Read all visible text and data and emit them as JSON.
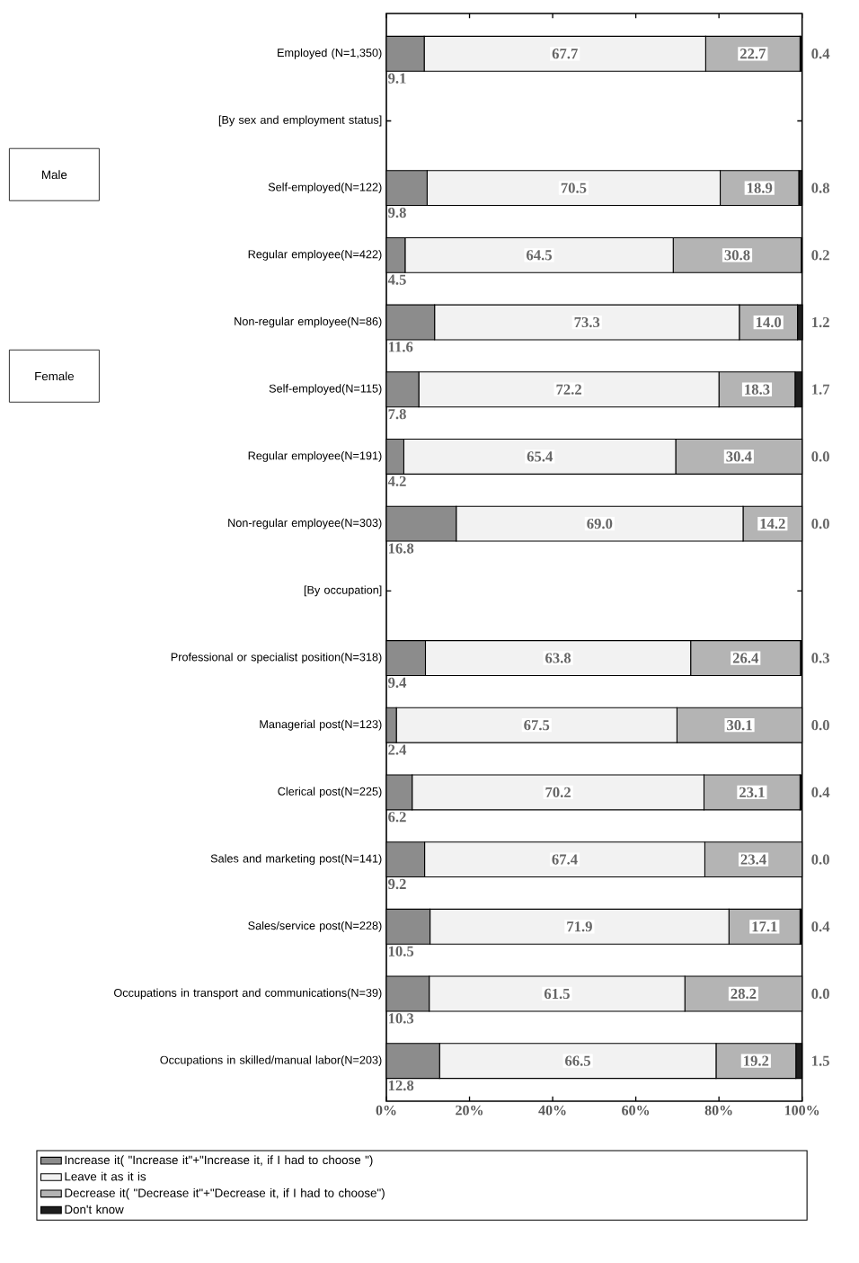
{
  "chart_data": {
    "type": "bar",
    "orientation": "horizontal",
    "stacked": true,
    "categories": [
      "Employed (N=1,350)",
      "[By sex and employment status]",
      "Self-employed(N=122)",
      "Regular employee(N=422)",
      "Non-regular employee(N=86)",
      "Self-employed(N=115)",
      "Regular employee(N=191)",
      "Non-regular employee(N=303)",
      "[By occupation]",
      "Professional or specialist position(N=318)",
      "Managerial post(N=123)",
      "Clerical post(N=225)",
      "Sales and marketing post(N=141)",
      "Sales/service post(N=228)",
      "Occupations in transport and communications(N=39)",
      "Occupations in skilled/manual labor(N=203)"
    ],
    "series": [
      {
        "name": "Increase it( \"Increase it\"+\"Increase it, if I had to choose \")",
        "color": "#8c8c8c",
        "values": [
          9.1,
          null,
          9.8,
          4.5,
          11.6,
          7.8,
          4.2,
          16.8,
          null,
          9.4,
          2.4,
          6.2,
          9.2,
          10.5,
          10.3,
          12.8
        ],
        "value_labels": [
          "9.1",
          null,
          "9.8",
          "4.5",
          "11.6",
          "7.8",
          "4.2",
          "16.8",
          null,
          "9.4",
          "2.4",
          "6.2",
          "9.2",
          "10.5",
          "10.3",
          "12.8"
        ]
      },
      {
        "name": "Leave it as it is",
        "color": "#f2f2f2",
        "values": [
          67.7,
          null,
          70.5,
          64.5,
          73.3,
          72.2,
          65.4,
          69.0,
          null,
          63.8,
          67.5,
          70.2,
          67.4,
          71.9,
          61.5,
          66.5
        ],
        "value_labels": [
          "67.7",
          null,
          "70.5",
          "64.5",
          "73.3",
          "72.2",
          "65.4",
          "69.0",
          null,
          "63.8",
          "67.5",
          "70.2",
          "67.4",
          "71.9",
          "61.5",
          "66.5"
        ]
      },
      {
        "name": "Decrease it( \"Decrease it\"+\"Decrease it, if I had to choose\")",
        "color": "#b4b4b4",
        "values": [
          22.7,
          null,
          18.9,
          30.8,
          14.0,
          18.3,
          30.4,
          14.2,
          null,
          26.4,
          30.1,
          23.1,
          23.4,
          17.1,
          28.2,
          19.2
        ],
        "value_labels": [
          "22.7",
          null,
          "18.9",
          "30.8",
          "14.0",
          "18.3",
          "30.4",
          "14.2",
          null,
          "26.4",
          "30.1",
          "23.1",
          "23.4",
          "17.1",
          "28.2",
          "19.2"
        ]
      },
      {
        "name": "Don't know",
        "color": "#1e1e1e",
        "values": [
          0.4,
          null,
          0.8,
          0.2,
          1.2,
          1.7,
          0.0,
          0.0,
          null,
          0.3,
          0.0,
          0.4,
          0.0,
          0.4,
          0.0,
          1.5
        ],
        "value_labels": [
          "0.4",
          null,
          "0.8",
          "0.2",
          "1.2",
          "1.7",
          "0.0",
          "0.0",
          null,
          "0.3",
          "0.0",
          "0.4",
          "0.0",
          "0.4",
          "0.0",
          "1.5"
        ]
      }
    ],
    "xlim": [
      0,
      100
    ],
    "xticks": [
      {
        "value": 0,
        "label": "0%"
      },
      {
        "value": 20,
        "label": "20%"
      },
      {
        "value": 40,
        "label": "40%"
      },
      {
        "value": 60,
        "label": "60%"
      },
      {
        "value": 80,
        "label": "80%"
      },
      {
        "value": 100,
        "label": "100%"
      }
    ],
    "annotations": [
      "Male",
      "Female"
    ],
    "legend": "bottom"
  }
}
